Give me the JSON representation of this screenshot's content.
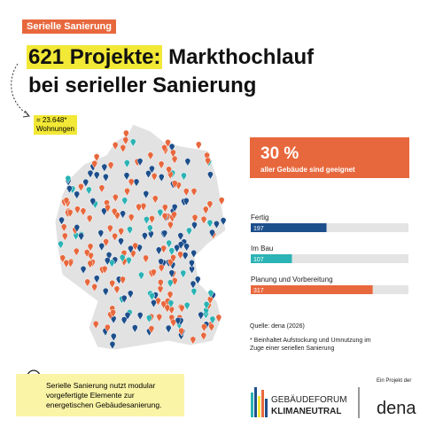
{
  "tag": "Serielle Sanierung",
  "title": {
    "highlight": "621 Projekte:",
    "rest": "Markthochlauf",
    "line2": "bei serieller Sanierung"
  },
  "annotation": {
    "value": "= 23.648*",
    "label": "Wohnungen"
  },
  "stat": {
    "value": "30 %",
    "label": "aller Gebäude sind geeignet"
  },
  "chart_data": {
    "type": "bar",
    "orientation": "horizontal",
    "categories": [
      "Fertig",
      "Im Bau",
      "Planung und Vorbereitung"
    ],
    "values": [
      197,
      107,
      317
    ],
    "colors": [
      "#1d4f8c",
      "#2bb3b5",
      "#e8683d"
    ],
    "xlim": [
      0,
      410
    ]
  },
  "source": "Quelle: dena (2026)",
  "footnote": "* Beinhaltet Aufstockung und Umnutzung im Zuge einer seriellen Sanierung",
  "info": "Serielle Sanierung nutzt modular vorgefertigte Elemente zur energetischen Gebäudesanierung.",
  "logo": {
    "line1": "GEBÄUDEFORUM",
    "line2": "KLIMANEUTRAL",
    "project": "Ein Projekt der",
    "org": "dena"
  }
}
